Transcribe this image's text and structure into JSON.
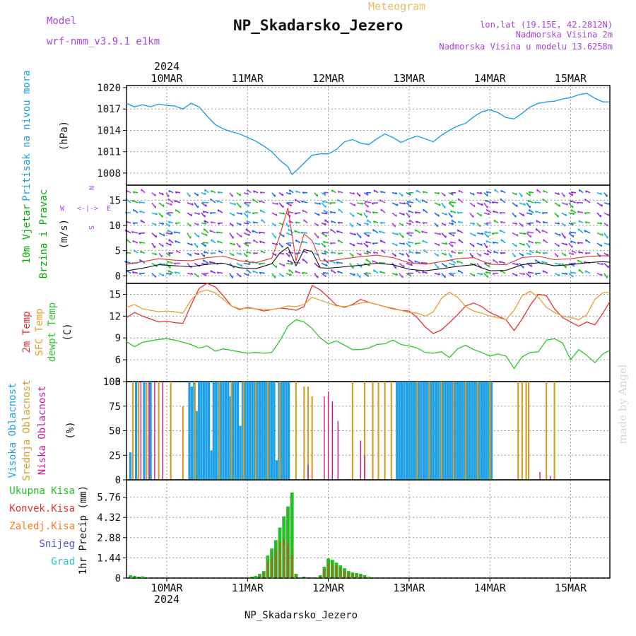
{
  "header": {
    "model_label": "Model",
    "model_name": "wrf-nmm_v3.9.1  e1km",
    "product": "Meteogram",
    "station": "NP_Skadarsko_Jezero",
    "lonlat": "lon,lat (19.15E, 42.2812N)",
    "elevation": "Nadmorska Visina 2m",
    "model_elevation": "Nadmorska Visina u modelu 13.6258m",
    "watermark": "made by Angel",
    "footer_station": "NP_Skadarsko_Jezero"
  },
  "colors": {
    "pressure": "#1ea0e6",
    "wind_label": "#00b000",
    "compass": "#aa44dd",
    "temp2m": "#e63232",
    "sfc_temp": "#e6a032",
    "dewpoint": "#2cc82c",
    "high_cloud": "#1ea0e6",
    "mid_cloud": "#d4a02a",
    "low_cloud": "#cc1a9a",
    "total_precip": "#22c022",
    "conv_precip": "#e63232",
    "grid_precip": "#ff7a1a",
    "snow": "#5050e6",
    "graupel": "#22c8c8",
    "precip_overlap": "#8a7a20",
    "wind_speed_line": "#111111",
    "wind_gust": "#e63232"
  },
  "time_axis": {
    "top_year": "2024",
    "bottom_year": "2024",
    "day_labels": [
      "10MAR",
      "11MAR",
      "12MAR",
      "13MAR",
      "14MAR",
      "15MAR"
    ],
    "day_index": [
      0,
      1,
      2,
      3,
      4,
      5
    ]
  },
  "chart_data": [
    {
      "panel": "pressure",
      "type": "line",
      "ylabel": "Pritisak na nivou mora",
      "unit": "(hPa)",
      "yticks": [
        1008,
        1011,
        1014,
        1017,
        1020
      ],
      "ylim": [
        1006.3,
        1020.3
      ],
      "x_days": [
        -0.5,
        -0.4,
        -0.3,
        -0.2,
        -0.1,
        0,
        0.1,
        0.2,
        0.3,
        0.4,
        0.5,
        0.6,
        0.7,
        0.8,
        0.9,
        1.0,
        1.1,
        1.2,
        1.3,
        1.4,
        1.5,
        1.55,
        1.6,
        1.7,
        1.8,
        1.9,
        2.0,
        2.1,
        2.2,
        2.3,
        2.4,
        2.5,
        2.6,
        2.7,
        2.8,
        2.9,
        3.0,
        3.1,
        3.2,
        3.3,
        3.4,
        3.5,
        3.6,
        3.7,
        3.8,
        3.9,
        4.0,
        4.1,
        4.2,
        4.3,
        4.4,
        4.5,
        4.6,
        4.7,
        4.8,
        4.9,
        5.0,
        5.1,
        5.2,
        5.3,
        5.4,
        5.5
      ],
      "values": [
        1017.8,
        1017.3,
        1017.6,
        1017.3,
        1017.7,
        1017.5,
        1017.4,
        1017.0,
        1017.8,
        1017.3,
        1016.0,
        1014.8,
        1014.2,
        1013.8,
        1013.5,
        1013.0,
        1012.5,
        1011.8,
        1011.0,
        1009.8,
        1008.9,
        1007.8,
        1008.3,
        1009.4,
        1010.5,
        1010.7,
        1010.7,
        1011.3,
        1012.4,
        1012.7,
        1012.2,
        1012.0,
        1012.8,
        1013.5,
        1013.0,
        1012.3,
        1012.8,
        1013.2,
        1012.8,
        1012.4,
        1013.3,
        1014.0,
        1014.6,
        1015.0,
        1015.9,
        1016.6,
        1016.9,
        1016.5,
        1015.8,
        1015.6,
        1016.4,
        1017.3,
        1017.8,
        1018.0,
        1018.1,
        1018.4,
        1018.6,
        1019.0,
        1019.2,
        1018.5,
        1018.0,
        1018.0
      ]
    },
    {
      "panel": "wind",
      "type": "line",
      "ylabel_top": "10m Vjetar",
      "ylabel_bottom": "Brzina i Pravac",
      "unit": "(m/s)",
      "compass": {
        "n": "N",
        "s": "S",
        "w": "W",
        "e": "E"
      },
      "yticks": [
        0,
        5,
        10,
        15
      ],
      "ylim": [
        -1.5,
        18.0
      ],
      "x_days": [
        -0.5,
        -0.3,
        -0.1,
        0.1,
        0.3,
        0.5,
        0.7,
        0.9,
        1.1,
        1.3,
        1.4,
        1.5,
        1.6,
        1.7,
        1.8,
        1.9,
        2.0,
        2.2,
        2.4,
        2.6,
        2.8,
        3.0,
        3.2,
        3.4,
        3.6,
        3.8,
        4.0,
        4.2,
        4.4,
        4.6,
        4.8,
        5.0,
        5.2,
        5.4,
        5.5
      ],
      "speed": [
        1.0,
        1.5,
        2.2,
        2.0,
        1.8,
        2.3,
        2.5,
        1.6,
        1.4,
        2.4,
        4.5,
        5.7,
        2.0,
        5.2,
        4.8,
        1.6,
        1.5,
        1.8,
        2.1,
        2.5,
        2.2,
        1.3,
        1.0,
        1.4,
        1.9,
        2.2,
        1.0,
        1.1,
        2.2,
        2.6,
        2.0,
        2.2,
        2.6,
        2.8,
        2.7
      ],
      "gust": [
        2.3,
        2.8,
        3.4,
        3.1,
        3.0,
        3.6,
        3.9,
        3.0,
        2.6,
        3.5,
        8.0,
        13.5,
        3.0,
        8.3,
        7.0,
        3.0,
        2.9,
        3.4,
        3.8,
        4.1,
        3.6,
        2.6,
        2.3,
        2.8,
        3.4,
        3.6,
        2.3,
        2.2,
        3.6,
        3.9,
        3.2,
        3.4,
        3.8,
        4.0,
        3.9
      ]
    },
    {
      "panel": "temperature",
      "type": "line",
      "ylabels": [
        "2m Temp",
        "SFC Temp",
        "dewpt Temp"
      ],
      "unit": "(C)",
      "yticks": [
        3,
        6,
        9,
        12,
        15
      ],
      "ylim": [
        3,
        16.5
      ],
      "x_days": [
        -0.5,
        -0.4,
        -0.3,
        -0.2,
        -0.1,
        0,
        0.1,
        0.2,
        0.3,
        0.4,
        0.5,
        0.6,
        0.7,
        0.8,
        0.9,
        1.0,
        1.1,
        1.2,
        1.3,
        1.4,
        1.5,
        1.6,
        1.7,
        1.8,
        1.9,
        2.0,
        2.1,
        2.2,
        2.3,
        2.4,
        2.5,
        2.6,
        2.7,
        2.8,
        2.9,
        3.0,
        3.1,
        3.2,
        3.3,
        3.4,
        3.5,
        3.6,
        3.7,
        3.8,
        3.9,
        4.0,
        4.1,
        4.2,
        4.3,
        4.4,
        4.5,
        4.6,
        4.7,
        4.8,
        4.9,
        5.0,
        5.1,
        5.2,
        5.3,
        5.4,
        5.5
      ],
      "series": [
        {
          "name": "2m Temp",
          "values": [
            11.8,
            12.5,
            12.0,
            11.6,
            11.2,
            11.3,
            11.1,
            11.0,
            13.5,
            15.8,
            16.5,
            16.0,
            14.8,
            13.4,
            12.9,
            13.2,
            13.0,
            12.7,
            12.9,
            13.1,
            13.0,
            12.8,
            13.3,
            16.2,
            15.6,
            14.6,
            13.5,
            13.2,
            13.6,
            14.3,
            13.9,
            13.6,
            13.3,
            13.0,
            12.8,
            12.7,
            11.8,
            10.5,
            9.6,
            10.1,
            11.1,
            12.2,
            13.4,
            13.8,
            13.3,
            12.5,
            12.0,
            11.5,
            10.0,
            11.6,
            13.5,
            15.0,
            14.8,
            13.0,
            11.8,
            11.2,
            10.6,
            11.2,
            10.8,
            12.4,
            14.0
          ]
        },
        {
          "name": "SFC Temp",
          "values": [
            13.2,
            13.6,
            13.0,
            12.8,
            12.6,
            12.7,
            12.6,
            12.4,
            14.2,
            15.3,
            15.6,
            15.2,
            14.3,
            13.4,
            13.0,
            13.1,
            13.0,
            12.9,
            12.9,
            13.1,
            13.4,
            13.3,
            13.6,
            14.6,
            14.2,
            13.8,
            13.4,
            13.3,
            13.5,
            13.8,
            13.9,
            13.6,
            13.3,
            13.1,
            12.8,
            12.5,
            12.4,
            12.0,
            12.6,
            14.4,
            15.3,
            14.6,
            13.3,
            12.7,
            12.4,
            12.0,
            11.8,
            11.5,
            12.8,
            14.8,
            15.4,
            14.6,
            13.2,
            12.5,
            12.0,
            11.8,
            11.5,
            12.2,
            14.3,
            15.2,
            15.3
          ]
        },
        {
          "name": "dewpt Temp",
          "values": [
            8.5,
            7.8,
            8.4,
            8.6,
            8.8,
            8.9,
            8.7,
            8.4,
            8.1,
            7.6,
            7.9,
            7.2,
            7.5,
            7.3,
            7.1,
            6.9,
            7.0,
            6.9,
            7.0,
            8.6,
            10.6,
            11.5,
            11.2,
            10.3,
            9.0,
            8.2,
            8.6,
            8.0,
            7.4,
            7.4,
            7.6,
            8.1,
            8.2,
            8.7,
            8.1,
            7.9,
            7.6,
            7.0,
            6.9,
            7.1,
            6.3,
            7.5,
            8.0,
            7.4,
            7.0,
            6.5,
            6.8,
            6.5,
            4.8,
            6.4,
            7.0,
            7.1,
            8.7,
            8.9,
            8.3,
            6.0,
            7.4,
            6.6,
            5.6,
            6.8,
            7.3
          ]
        }
      ]
    },
    {
      "panel": "clouds",
      "type": "bar",
      "ylabels": [
        "Visoka Oblacnost",
        "Srednja Oblacnost",
        "Niska Oblacnost"
      ],
      "unit": "(%)",
      "yticks": [
        0,
        25,
        50,
        75,
        100
      ],
      "ylim": [
        0,
        100
      ],
      "series": [
        {
          "name": "Visoka Oblacnost",
          "x_days": [
            -0.45,
            -0.38,
            -0.28,
            -0.2,
            0.28,
            0.31,
            0.34,
            0.37,
            0.4,
            0.43,
            0.46,
            0.49,
            0.52,
            0.55,
            0.58,
            0.61,
            0.64,
            0.67,
            0.7,
            0.73,
            0.76,
            0.79,
            0.82,
            0.85,
            0.88,
            0.91,
            0.94,
            0.97,
            1.0,
            1.03,
            1.06,
            1.09,
            1.12,
            1.15,
            1.18,
            1.21,
            1.24,
            1.27,
            1.3,
            1.33,
            1.36,
            1.39,
            1.42,
            1.45,
            1.48,
            1.51,
            2.85,
            2.88,
            2.91,
            2.94,
            2.97,
            3.0,
            3.03,
            3.06,
            3.09,
            3.12,
            3.15,
            3.18,
            3.21,
            3.24,
            3.27,
            3.3,
            3.33,
            3.36,
            3.39,
            3.42,
            3.45,
            3.48,
            3.51,
            3.54,
            3.57,
            3.6,
            3.63,
            3.66,
            3.69,
            3.72,
            3.75,
            3.78,
            3.81,
            3.84,
            3.87,
            3.9,
            3.93,
            3.96,
            3.99,
            4.02
          ],
          "values": [
            28,
            100,
            100,
            100,
            100,
            95,
            100,
            70,
            100,
            100,
            100,
            100,
            100,
            30,
            100,
            100,
            100,
            100,
            100,
            100,
            100,
            85,
            100,
            100,
            100,
            55,
            100,
            100,
            100,
            100,
            100,
            100,
            100,
            100,
            100,
            100,
            100,
            100,
            100,
            100,
            20,
            100,
            100,
            100,
            100,
            100,
            100,
            100,
            100,
            100,
            100,
            100,
            100,
            100,
            100,
            100,
            100,
            100,
            100,
            100,
            100,
            100,
            100,
            100,
            100,
            100,
            100,
            100,
            100,
            100,
            100,
            100,
            100,
            100,
            100,
            100,
            100,
            100,
            100,
            100,
            100,
            100,
            100,
            100,
            100,
            100
          ]
        },
        {
          "name": "Srednja Oblacnost",
          "x_days": [
            -0.42,
            -0.35,
            -0.25,
            -0.1,
            0.05,
            0.2,
            0.35,
            0.65,
            0.8,
            0.95,
            1.1,
            1.25,
            1.4,
            1.6,
            1.7,
            1.75,
            1.8,
            2.3,
            2.45,
            2.55,
            2.62,
            2.7,
            2.78,
            3.1,
            3.25,
            3.4,
            3.55,
            3.7,
            3.85,
            4.0,
            4.35,
            4.4,
            4.45,
            4.48,
            4.7,
            4.8
          ],
          "values": [
            100,
            100,
            100,
            100,
            100,
            75,
            100,
            100,
            100,
            100,
            100,
            100,
            100,
            100,
            95,
            95,
            85,
            100,
            100,
            100,
            100,
            100,
            100,
            100,
            100,
            100,
            100,
            100,
            100,
            100,
            100,
            100,
            100,
            100,
            100,
            100
          ]
        },
        {
          "name": "Niska Oblacnost",
          "x_days": [
            -0.32,
            -0.22,
            -0.15,
            -0.05,
            1.75,
            1.95,
            2.0,
            2.05,
            2.12,
            2.4,
            2.45,
            4.62,
            4.75
          ],
          "values": [
            100,
            100,
            100,
            100,
            15,
            85,
            90,
            80,
            60,
            40,
            25,
            8,
            4
          ]
        }
      ]
    },
    {
      "panel": "precip",
      "type": "bar",
      "ylabel": "1hr Precip (mm)",
      "legend": [
        "Ukupna Kisa",
        "Konvek.Kisa",
        "Zaledj.Kisa",
        "Snijeg",
        "Grad"
      ],
      "yticks": [
        0,
        1.44,
        2.88,
        4.32,
        5.76
      ],
      "ytick_labels": [
        "0",
        "1.44",
        "2.88",
        "4.32",
        "5.76"
      ],
      "ylim": [
        0,
        7.0
      ],
      "x_days": [
        -0.45,
        -0.4,
        -0.35,
        -0.3,
        -0.25,
        1.05,
        1.1,
        1.15,
        1.2,
        1.25,
        1.3,
        1.35,
        1.4,
        1.45,
        1.5,
        1.55,
        1.6,
        1.7,
        1.9,
        1.95,
        2.0,
        2.05,
        2.1,
        2.15,
        2.2,
        2.25,
        2.3,
        2.35,
        2.4,
        2.45,
        2.5
      ],
      "series": [
        {
          "name": "Ukupna Kisa",
          "values": [
            0.2,
            0.15,
            0.1,
            0.12,
            0.05,
            0.1,
            0.15,
            0.3,
            0.5,
            1.6,
            2.1,
            2.7,
            3.6,
            4.4,
            5.1,
            6.1,
            0.3,
            0.1,
            0.2,
            0.8,
            1.4,
            1.3,
            1.1,
            0.9,
            0.7,
            0.5,
            0.4,
            0.35,
            0.3,
            0.2,
            0.1
          ]
        },
        {
          "name": "Konvek.Kisa",
          "values": [
            0.0,
            0.0,
            0.0,
            0.0,
            0.0,
            0.0,
            0.0,
            0.2,
            0.4,
            1.2,
            1.5,
            2.0,
            2.6,
            2.8,
            2.4,
            1.6,
            0.2,
            0.0,
            0.1,
            0.6,
            1.1,
            1.0,
            0.9,
            0.7,
            0.5,
            0.4,
            0.3,
            0.25,
            0.2,
            0.1,
            0.05
          ]
        }
      ]
    }
  ]
}
